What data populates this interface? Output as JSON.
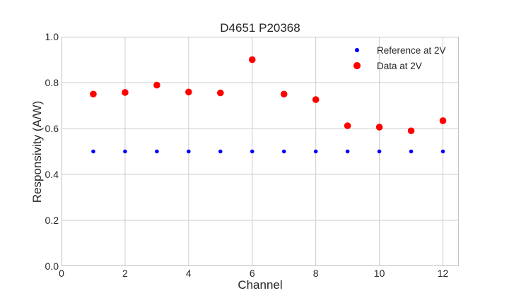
{
  "chart_data": {
    "type": "scatter",
    "title": "D4651 P20368",
    "xlabel": "Channel",
    "ylabel": "Responsivity (A/W)",
    "xlim": [
      0,
      12.5
    ],
    "ylim": [
      0.0,
      1.0
    ],
    "x_ticks": [
      0,
      2,
      4,
      6,
      8,
      10,
      12
    ],
    "x_tick_labels": [
      "0",
      "2",
      "4",
      "6",
      "8",
      "10",
      "12"
    ],
    "y_ticks": [
      0.0,
      0.2,
      0.4,
      0.6,
      0.8,
      1.0
    ],
    "y_tick_labels": [
      "0.0",
      "0.2",
      "0.4",
      "0.6",
      "0.8",
      "1.0"
    ],
    "grid": true,
    "legend_position": "upper right",
    "legend_frame": false,
    "channels": [
      1,
      2,
      3,
      4,
      5,
      6,
      7,
      8,
      9,
      10,
      11,
      12
    ],
    "series": [
      {
        "name": "Reference at 2V",
        "color": "#0000ff",
        "marker": "small-dot",
        "values": [
          0.5,
          0.5,
          0.5,
          0.5,
          0.5,
          0.5,
          0.5,
          0.5,
          0.5,
          0.5,
          0.5,
          0.5
        ]
      },
      {
        "name": "Data at 2V",
        "color": "#ff0000",
        "marker": "large-dot",
        "values": [
          0.75,
          0.757,
          0.789,
          0.759,
          0.755,
          0.9,
          0.75,
          0.726,
          0.612,
          0.606,
          0.59,
          0.634
        ]
      }
    ],
    "colors": {
      "grid": "#cccccc",
      "spine": "#c2c2c2",
      "text": "#262626",
      "background": "#ffffff"
    }
  }
}
